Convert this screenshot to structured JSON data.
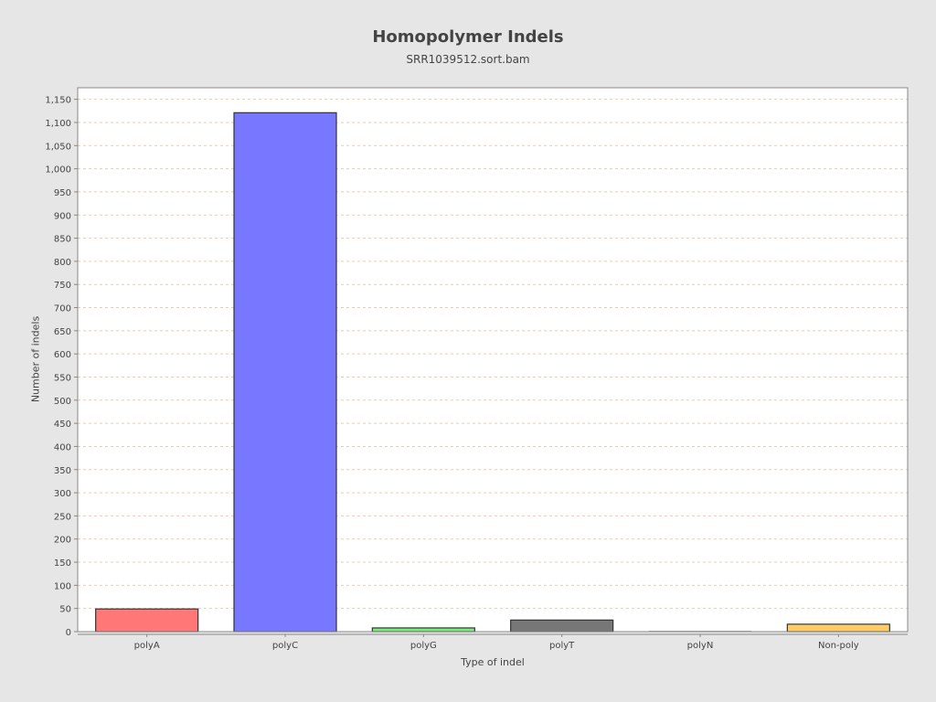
{
  "chart_data": {
    "type": "bar",
    "title": "Homopolymer Indels",
    "subtitle": "SRR1039512.sort.bam",
    "xlabel": "Type of indel",
    "ylabel": "Number of indels",
    "categories": [
      "polyA",
      "polyC",
      "polyG",
      "polyT",
      "polyN",
      "Non-poly"
    ],
    "values": [
      49,
      1121,
      8,
      25,
      0,
      16
    ],
    "colors": [
      "#ff7777",
      "#7777ff",
      "#77ee77",
      "#777777",
      "#cccccc",
      "#ffcc66"
    ],
    "ylim": [
      0,
      1175
    ],
    "yticks": [
      0,
      50,
      100,
      150,
      200,
      250,
      300,
      350,
      400,
      450,
      500,
      550,
      600,
      650,
      700,
      750,
      800,
      850,
      900,
      950,
      1000,
      1050,
      1100,
      1150
    ],
    "ytick_labels": [
      "0",
      "50",
      "100",
      "150",
      "200",
      "250",
      "300",
      "350",
      "400",
      "450",
      "500",
      "550",
      "600",
      "650",
      "700",
      "750",
      "800",
      "850",
      "900",
      "950",
      "1,000",
      "1,050",
      "1,100",
      "1,150"
    ],
    "grid": true,
    "plot_background": "#ffffff",
    "gridline_color": "#f2c9a8",
    "legend": "none"
  }
}
